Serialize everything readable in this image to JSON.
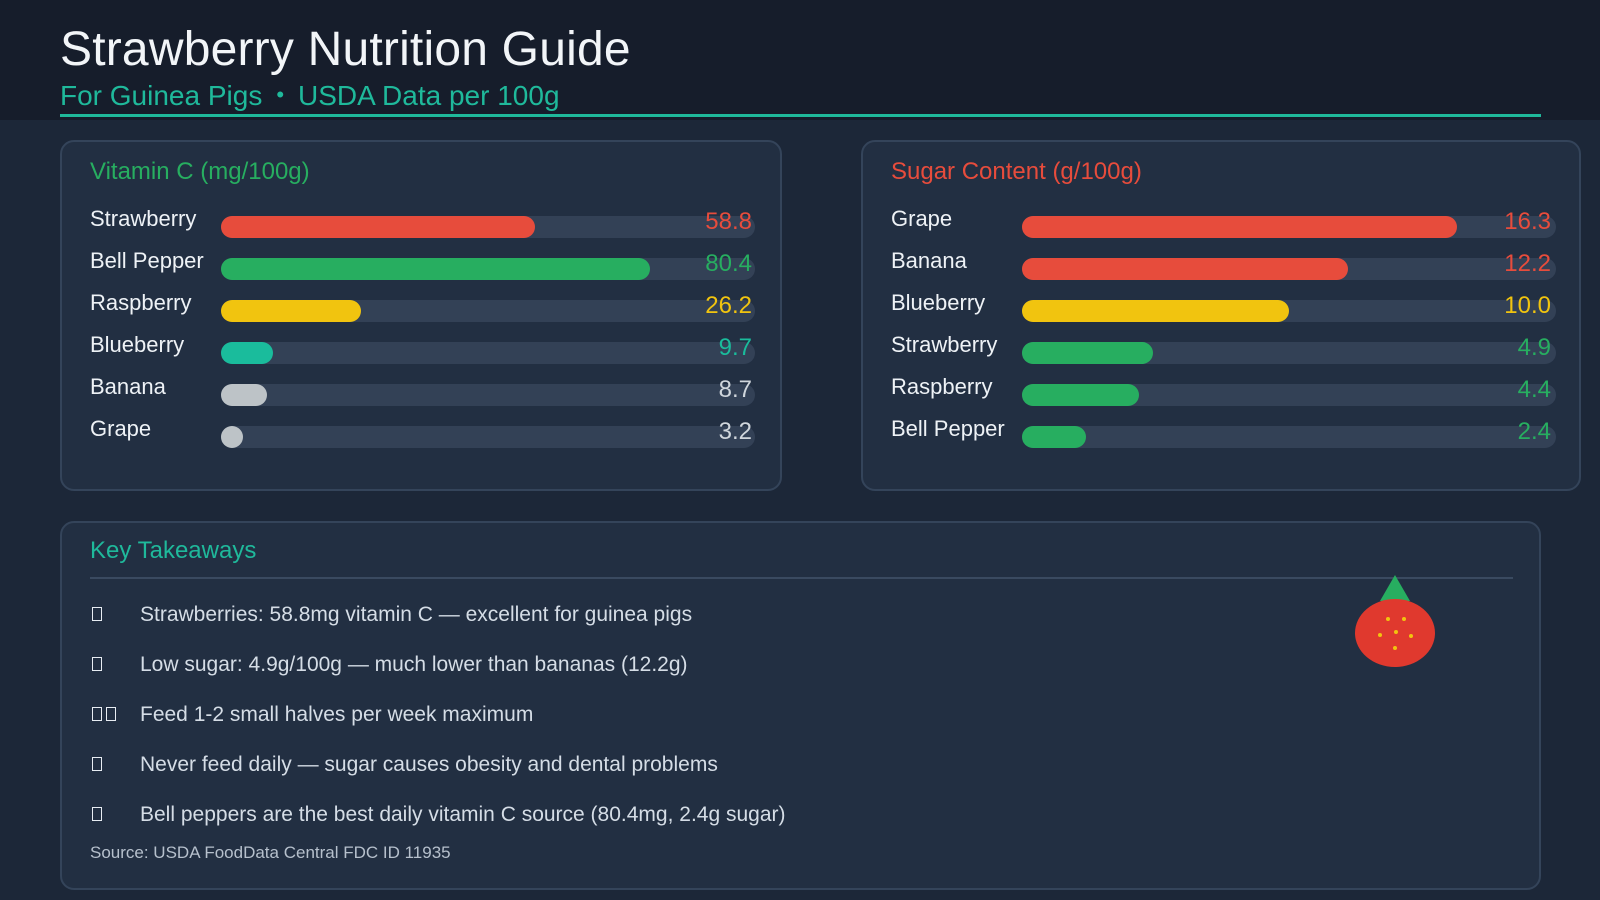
{
  "header": {
    "title": "Strawberry Nutrition Guide",
    "subtitle_left": "For Guinea Pigs",
    "subtitle_sep": "•",
    "subtitle_right": "USDA Data per 100g"
  },
  "chart_data": [
    {
      "type": "bar",
      "orientation": "horizontal",
      "title": "Vitamin C (mg/100g)",
      "categories": [
        "Strawberry",
        "Bell Pepper",
        "Raspberry",
        "Blueberry",
        "Banana",
        "Grape"
      ],
      "values": [
        58.8,
        80.4,
        26.2,
        9.7,
        8.7,
        3.2
      ],
      "value_labels": [
        "58.8",
        "80.4",
        "26.2",
        "9.7",
        "8.7",
        "3.2"
      ],
      "xlim": [
        0,
        100
      ],
      "colors": [
        "#e74c3c",
        "#27ae60",
        "#f1c40f",
        "#1abc9c",
        "#bdc3c7",
        "#bdc3c7"
      ],
      "label_colors": [
        "#e74c3c",
        "#27ae60",
        "#f1c40f",
        "#1abc9c",
        "#d0d6dc",
        "#d0d6dc"
      ],
      "title_color": "#27ae60"
    },
    {
      "type": "bar",
      "orientation": "horizontal",
      "title": "Sugar Content (g/100g)",
      "categories": [
        "Grape",
        "Banana",
        "Blueberry",
        "Strawberry",
        "Raspberry",
        "Bell Pepper"
      ],
      "values": [
        16.3,
        12.2,
        10.0,
        4.9,
        4.4,
        2.4
      ],
      "value_labels": [
        "16.3",
        "12.2",
        "10.0",
        "4.9",
        "4.4",
        "2.4"
      ],
      "xlim": [
        0,
        20
      ],
      "colors": [
        "#e74c3c",
        "#e74c3c",
        "#f1c40f",
        "#27ae60",
        "#27ae60",
        "#27ae60"
      ],
      "label_colors": [
        "#e74c3c",
        "#e74c3c",
        "#f1c40f",
        "#27ae60",
        "#27ae60",
        "#27ae60"
      ],
      "title_color": "#e74c3c"
    }
  ],
  "takeaways": {
    "title": "Key Takeaways",
    "items": [
      "Strawberries: 58.8mg vitamin C — excellent for guinea pigs",
      "Low sugar: 4.9g/100g — much lower than bananas (12.2g)",
      "Feed 1-2 small halves per week maximum",
      "Never feed daily — sugar causes obesity and dental problems",
      "Bell peppers are the best daily vitamin C source (80.4mg, 2.4g sugar)"
    ],
    "box_counts": [
      1,
      1,
      2,
      1,
      1
    ],
    "source": "Source: USDA FoodData Central FDC ID 11935",
    "illustration": "strawberry-icon"
  }
}
